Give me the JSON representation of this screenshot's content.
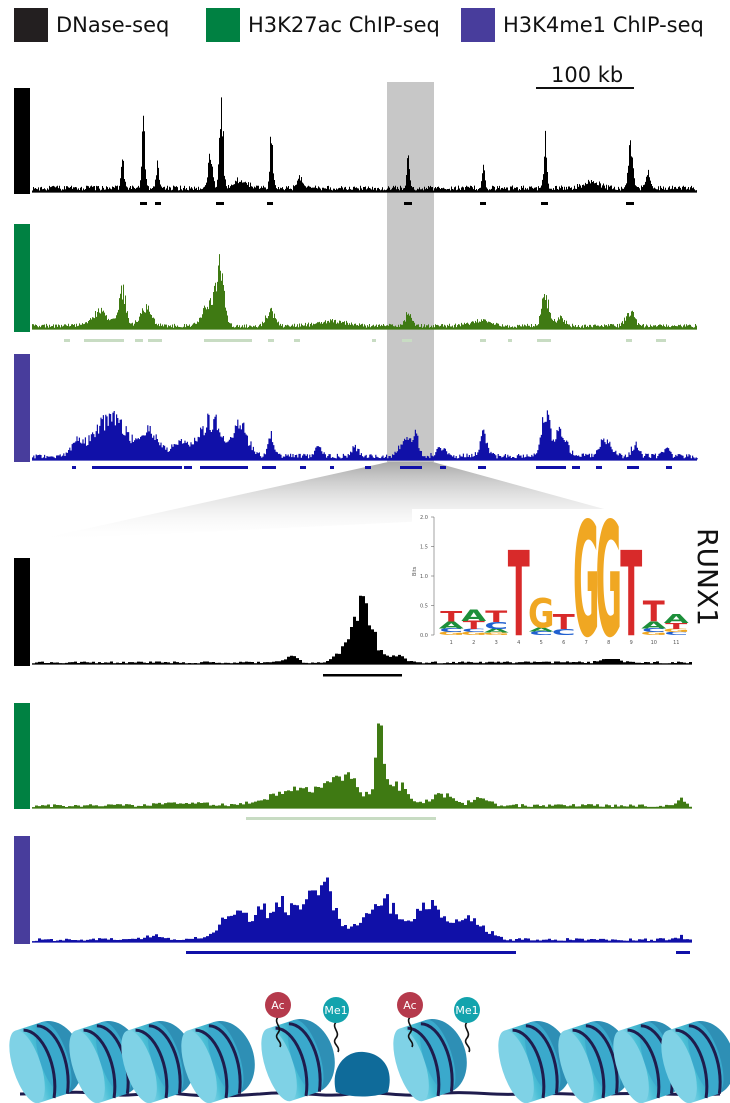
{
  "legend": [
    {
      "label": "DNase-seq",
      "color": "#231f20"
    },
    {
      "label": "H3K27ac ChIP-seq",
      "color": "#008142"
    },
    {
      "label": "H3K4me1 ChIP-seq",
      "color": "#483d9c"
    }
  ],
  "scale_bar": {
    "label": "100 kb"
  },
  "colors": {
    "dnase": "#000000",
    "h3k27ac": "#3f7a13",
    "h3k4me1": "#1010a8",
    "h3k27ac_peaks": "#c8dcc3",
    "highlight": "#b4b4b4",
    "nucleosome": "#4bbfd6",
    "nucleosome_dark": "#2a8fb3",
    "dna": "#1f1c4d",
    "tf": "#0f6b9a",
    "ac_mark": "#b53a4c",
    "me1_mark": "#13a3ad"
  },
  "motif": {
    "name": "RUNX1",
    "y_axis_label": "Bits",
    "y_ticks": [
      "0.0",
      "0.5",
      "1.0",
      "1.5",
      "2.0"
    ],
    "positions": [
      "1",
      "2",
      "3",
      "4",
      "5",
      "6",
      "7",
      "8",
      "9",
      "10",
      "11"
    ],
    "columns": [
      [
        {
          "b": "G",
          "h": 0.05
        },
        {
          "b": "C",
          "h": 0.06
        },
        {
          "b": "A",
          "h": 0.12
        },
        {
          "b": "T",
          "h": 0.18
        }
      ],
      [
        {
          "b": "G",
          "h": 0.05
        },
        {
          "b": "C",
          "h": 0.05
        },
        {
          "b": "T",
          "h": 0.14
        },
        {
          "b": "A",
          "h": 0.2
        }
      ],
      [
        {
          "b": "G",
          "h": 0.04
        },
        {
          "b": "A",
          "h": 0.06
        },
        {
          "b": "C",
          "h": 0.12
        },
        {
          "b": "T",
          "h": 0.2
        }
      ],
      [
        {
          "b": "T",
          "h": 1.45
        }
      ],
      [
        {
          "b": "C",
          "h": 0.06
        },
        {
          "b": "A",
          "h": 0.07
        },
        {
          "b": "G",
          "h": 0.5
        }
      ],
      [
        {
          "b": "C",
          "h": 0.1
        },
        {
          "b": "T",
          "h": 0.25
        }
      ],
      [
        {
          "b": "G",
          "h": 1.95
        }
      ],
      [
        {
          "b": "G",
          "h": 1.95
        }
      ],
      [
        {
          "b": "T",
          "h": 1.45
        }
      ],
      [
        {
          "b": "G",
          "h": 0.05
        },
        {
          "b": "C",
          "h": 0.06
        },
        {
          "b": "A",
          "h": 0.12
        },
        {
          "b": "T",
          "h": 0.35
        }
      ],
      [
        {
          "b": "C",
          "h": 0.05
        },
        {
          "b": "G",
          "h": 0.05
        },
        {
          "b": "T",
          "h": 0.1
        },
        {
          "b": "A",
          "h": 0.15
        }
      ]
    ]
  },
  "histone_marks": [
    {
      "label": "Ac",
      "kind": "acetylation"
    },
    {
      "label": "Me1",
      "kind": "monomethylation"
    },
    {
      "label": "Ac",
      "kind": "acetylation"
    },
    {
      "label": "Me1",
      "kind": "monomethylation"
    }
  ],
  "base_colors": {
    "A": "#1d8f3a",
    "C": "#2060d0",
    "G": "#f0a722",
    "T": "#d82a2a"
  }
}
